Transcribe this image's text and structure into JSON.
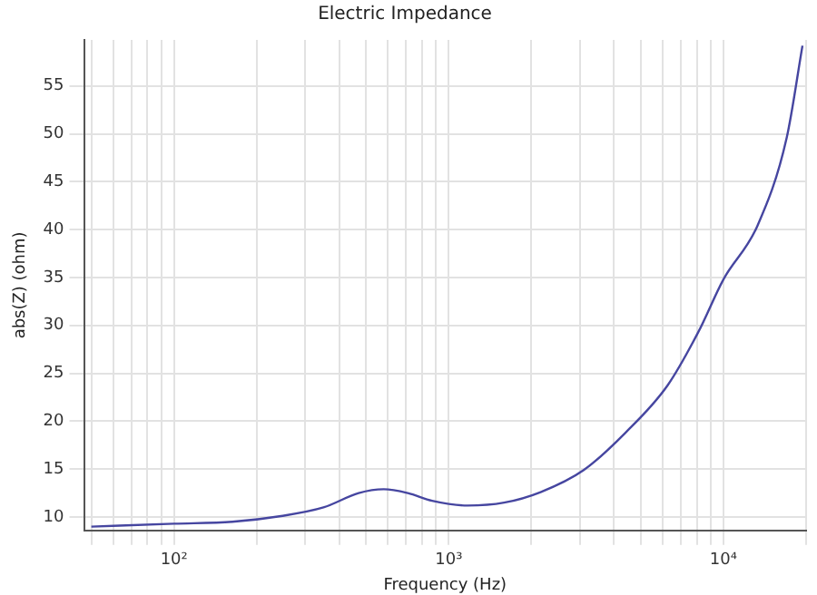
{
  "chart_data": {
    "type": "line",
    "title": "Electric Impedance",
    "xlabel": "Frequency (Hz)",
    "ylabel": "abs(Z) (ohm)",
    "log": "x",
    "grid": true,
    "legend": false,
    "marker": "none",
    "line_style": "solid",
    "xlim": [
      47,
      20000
    ],
    "ylim": [
      8.6,
      59.8
    ],
    "xticks": [
      {
        "value": 50,
        "label": null
      },
      {
        "value": 60,
        "label": null
      },
      {
        "value": 70,
        "label": null
      },
      {
        "value": 80,
        "label": null
      },
      {
        "value": 90,
        "label": null
      },
      {
        "value": 100,
        "label": "10²"
      },
      {
        "value": 200,
        "label": null
      },
      {
        "value": 300,
        "label": null
      },
      {
        "value": 400,
        "label": null
      },
      {
        "value": 500,
        "label": null
      },
      {
        "value": 600,
        "label": null
      },
      {
        "value": 700,
        "label": null
      },
      {
        "value": 800,
        "label": null
      },
      {
        "value": 900,
        "label": null
      },
      {
        "value": 1000,
        "label": "10³"
      },
      {
        "value": 2000,
        "label": null
      },
      {
        "value": 3000,
        "label": null
      },
      {
        "value": 4000,
        "label": null
      },
      {
        "value": 5000,
        "label": null
      },
      {
        "value": 6000,
        "label": null
      },
      {
        "value": 7000,
        "label": null
      },
      {
        "value": 8000,
        "label": null
      },
      {
        "value": 9000,
        "label": null
      },
      {
        "value": 10000,
        "label": "10⁴"
      },
      {
        "value": 20000,
        "label": null
      }
    ],
    "yticks": [
      10,
      15,
      20,
      25,
      30,
      35,
      40,
      45,
      50,
      55
    ],
    "series": [
      {
        "color": "#4646a0",
        "x": [
          50,
          100,
          163,
          245,
          350,
          470,
          580,
          710,
          870,
          1170,
          1590,
          2160,
          3100,
          4400,
          6250,
          8100,
          10000,
          13300,
          17000,
          19400
        ],
        "values": [
          9.0,
          9.3,
          9.5,
          10.1,
          11.0,
          12.5,
          12.9,
          12.5,
          11.7,
          11.2,
          11.5,
          12.6,
          14.9,
          18.8,
          23.7,
          29.3,
          34.8,
          40.4,
          49.6,
          59.2
        ]
      }
    ]
  }
}
